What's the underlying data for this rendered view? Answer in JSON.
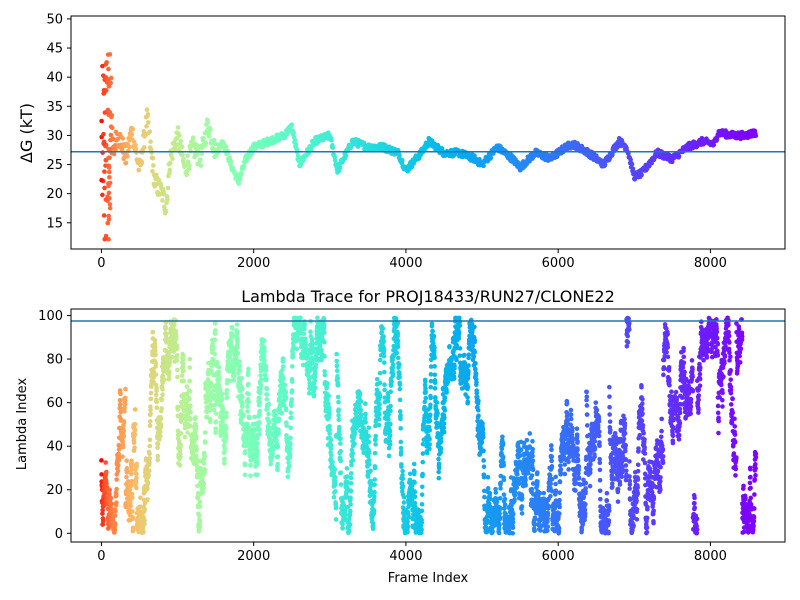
{
  "chart_data": [
    {
      "type": "scatter",
      "title": "",
      "xlabel": "",
      "ylabel": "ΔG (kT)",
      "xlim": [
        -400,
        8980
      ],
      "ylim": [
        10.5,
        50.5
      ],
      "xticks": [
        0,
        2000,
        4000,
        6000,
        8000
      ],
      "yticks": [
        15,
        20,
        25,
        30,
        35,
        40,
        45,
        50
      ],
      "hline": 27.2,
      "hline_color": "#1f77b4",
      "colormap": "rainbow",
      "grid": false,
      "series": [
        {
          "x_range": [
            0,
            8600
          ],
          "points_note_anchor": [
            [
              0,
              42
            ],
            [
              10,
              37
            ],
            [
              20,
              30
            ],
            [
              30,
              18
            ],
            [
              40,
              11
            ],
            [
              60,
              28
            ],
            [
              80,
              43
            ],
            [
              100,
              25
            ],
            [
              130,
              33
            ],
            [
              160,
              27
            ],
            [
              200,
              30
            ],
            [
              260,
              29
            ],
            [
              320,
              26
            ],
            [
              400,
              31
            ],
            [
              500,
              24
            ],
            [
              600,
              33
            ],
            [
              700,
              22
            ],
            [
              800,
              20
            ],
            [
              850,
              17.5
            ],
            [
              900,
              26
            ],
            [
              1000,
              30
            ],
            [
              1100,
              24
            ],
            [
              1200,
              28
            ],
            [
              1300,
              26
            ],
            [
              1400,
              32
            ],
            [
              1500,
              27
            ],
            [
              1600,
              29
            ],
            [
              1700,
              25
            ],
            [
              1800,
              22
            ],
            [
              1900,
              26
            ],
            [
              2000,
              28
            ],
            [
              2200,
              29
            ],
            [
              2400,
              30
            ],
            [
              2500,
              31.5
            ],
            [
              2600,
              25
            ],
            [
              2800,
              29
            ],
            [
              3000,
              30
            ],
            [
              3100,
              24
            ],
            [
              3300,
              29
            ],
            [
              3500,
              28
            ],
            [
              3700,
              28
            ],
            [
              3900,
              27
            ],
            [
              4000,
              24
            ],
            [
              4200,
              27
            ],
            [
              4300,
              29
            ],
            [
              4500,
              27
            ],
            [
              4700,
              27
            ],
            [
              4900,
              26
            ],
            [
              5000,
              25
            ],
            [
              5200,
              28
            ],
            [
              5400,
              26
            ],
            [
              5500,
              24.5
            ],
            [
              5700,
              27
            ],
            [
              5900,
              26
            ],
            [
              6100,
              28
            ],
            [
              6200,
              28.5
            ],
            [
              6400,
              27
            ],
            [
              6600,
              25
            ],
            [
              6800,
              29
            ],
            [
              6900,
              28
            ],
            [
              7000,
              23
            ],
            [
              7100,
              23.5
            ],
            [
              7300,
              27
            ],
            [
              7500,
              26
            ],
            [
              7700,
              28
            ],
            [
              7900,
              29
            ],
            [
              8050,
              28.5
            ],
            [
              8100,
              30.5
            ],
            [
              8300,
              30
            ],
            [
              8450,
              30
            ],
            [
              8600,
              30.5
            ]
          ]
        }
      ]
    },
    {
      "type": "scatter",
      "title": "Lambda Trace for PROJ18433/RUN27/CLONE22",
      "xlabel": "Frame Index",
      "ylabel": "Lambda Index",
      "xlim": [
        -400,
        8980
      ],
      "ylim": [
        -4,
        103
      ],
      "xticks": [
        0,
        2000,
        4000,
        6000,
        8000
      ],
      "yticks": [
        0,
        20,
        40,
        60,
        80,
        100
      ],
      "hline": 97.5,
      "hline_color": "#1f77b4",
      "colormap": "rainbow",
      "grid": false,
      "series": [
        {
          "x_range": [
            0,
            8600
          ],
          "y_range": [
            0,
            99
          ]
        }
      ]
    }
  ]
}
